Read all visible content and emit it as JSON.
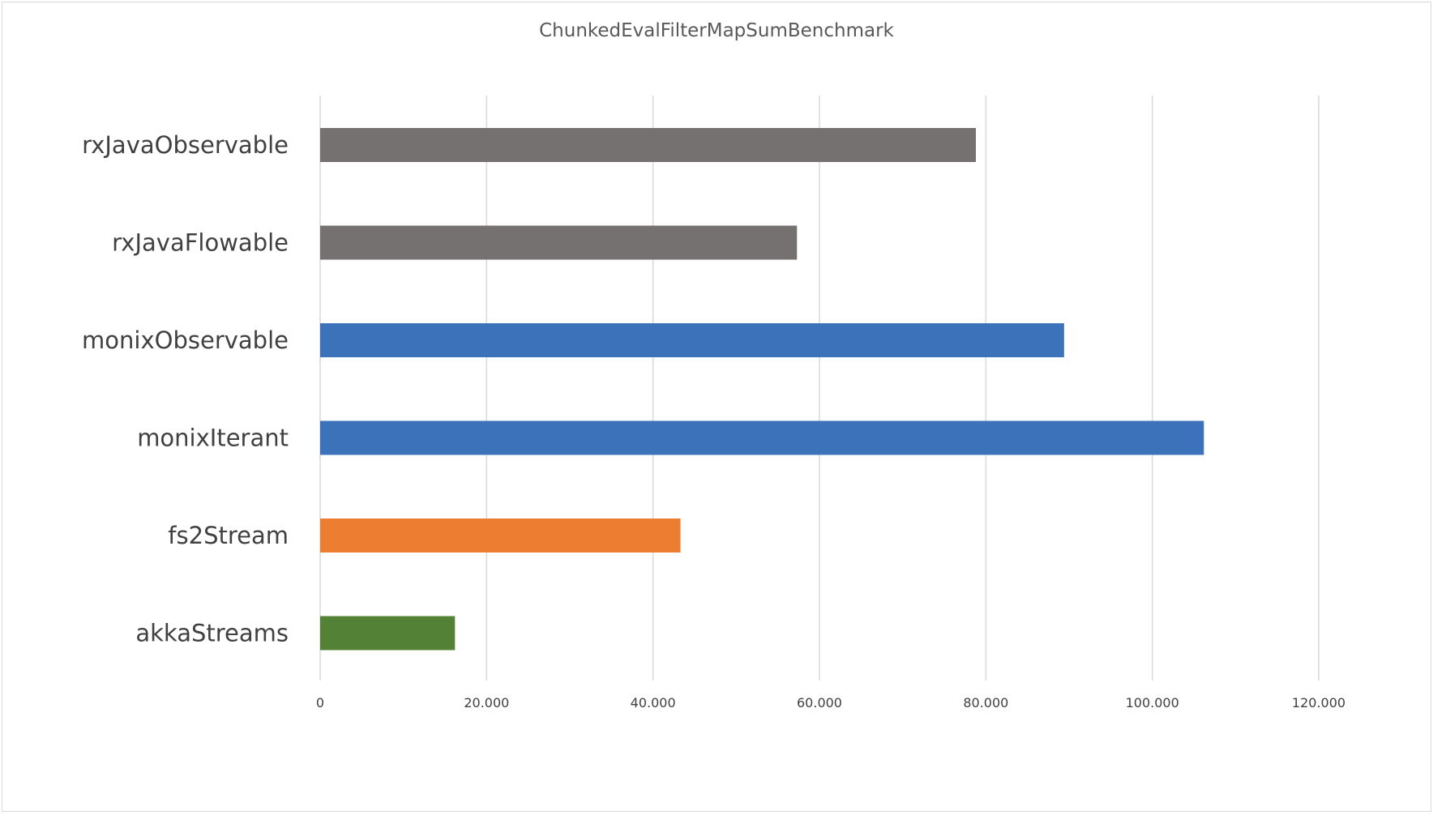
{
  "chart_data": {
    "type": "bar",
    "orientation": "horizontal",
    "title": "ChunkedEvalFilterMapSumBenchmark",
    "xlabel": "",
    "ylabel": "",
    "xlim": [
      0,
      120000
    ],
    "ticks": [
      0,
      20000,
      40000,
      60000,
      80000,
      100000,
      120000
    ],
    "tick_labels": [
      "0",
      "20.000",
      "40.000",
      "60.000",
      "80.000",
      "100.000",
      "120.000"
    ],
    "grid": true,
    "legend": "none",
    "categories": [
      "rxJavaObservable",
      "rxJavaFlowable",
      "monixObservable",
      "monixIterant",
      "fs2Stream",
      "akkaStreams"
    ],
    "values": [
      78800,
      57300,
      89400,
      106200,
      43300,
      16200
    ],
    "colors": [
      "#767171",
      "#767171",
      "#3b72b9",
      "#3b72b9",
      "#ed7d31",
      "#538135"
    ]
  }
}
